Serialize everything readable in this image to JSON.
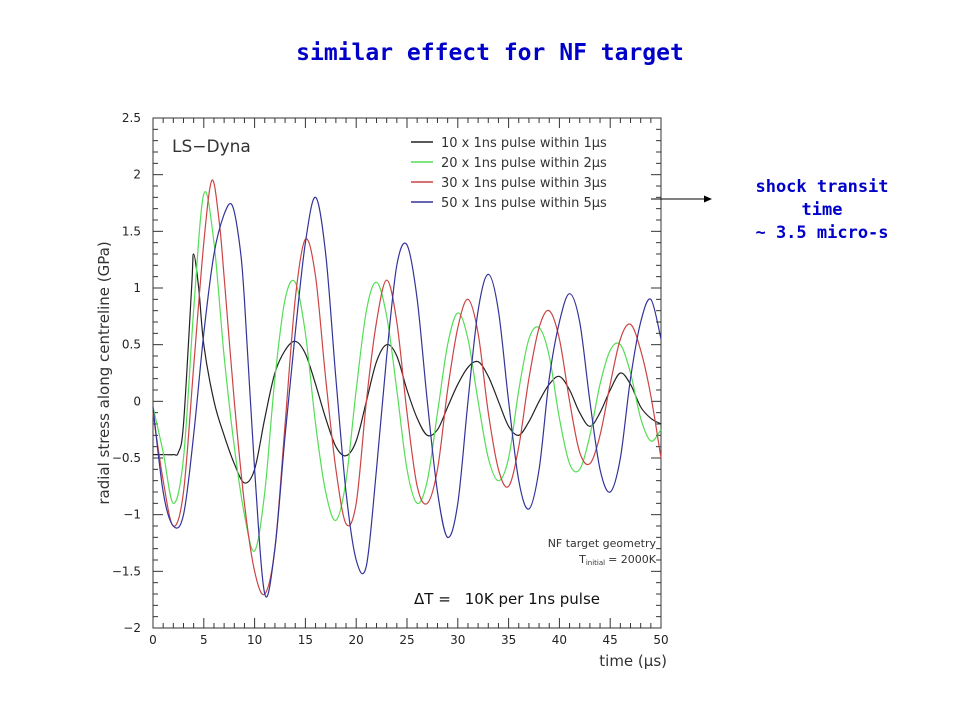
{
  "slide": {
    "title": "similar effect for NF target",
    "note_lines": [
      "shock transit",
      "time",
      "~ 3.5 micro-s"
    ]
  },
  "colors": {
    "title": "#0000c8",
    "s10": "#222222",
    "s20": "#55dd55",
    "s30": "#cc4444",
    "s50": "#333399"
  },
  "chart_data": {
    "type": "line",
    "xlabel": "time (µs)",
    "ylabel": "radial stress along centreline (GPa)",
    "xlim": [
      0,
      50
    ],
    "ylim": [
      -2,
      2.5
    ],
    "x_ticks": [
      0,
      5,
      10,
      15,
      20,
      25,
      30,
      35,
      40,
      45,
      50
    ],
    "x_tick_labels": [
      "0",
      "5",
      "10",
      "15",
      "20",
      "25",
      "30",
      "35",
      "40",
      "45",
      "50"
    ],
    "y_ticks": [
      -2,
      -1.5,
      -1,
      -0.5,
      0,
      0.5,
      1,
      1.5,
      2,
      2.5
    ],
    "y_tick_labels": [
      "−2",
      "−1.5",
      "−1",
      "−0.5",
      "0",
      "0.5",
      "1",
      "1.5",
      "2",
      "2.5"
    ],
    "legend_position": "top-right",
    "annotations": {
      "solver": "LS−Dyna",
      "geometry": "NF target geometry",
      "temp_prefix": "T",
      "temp_sub": "initial",
      "temp_value": "= 2000K",
      "delta_prefix": "ΔT =",
      "delta_value": "10K per 1ns pulse"
    },
    "series": [
      {
        "name": "10 x 1ns pulse within 1µs",
        "color_key": "s10",
        "x": [
          0,
          1,
          2,
          2.5,
          3,
          3.8,
          4,
          4.5,
          5,
          6,
          7,
          8,
          9,
          10,
          11,
          12,
          13,
          14,
          15,
          16,
          17,
          18,
          19,
          20,
          21,
          22,
          23,
          24,
          25,
          26,
          27,
          28,
          29,
          30,
          31,
          32,
          33,
          34,
          35,
          36,
          37,
          38,
          39,
          40,
          41,
          42,
          43,
          44,
          45,
          46,
          47,
          48,
          49,
          50
        ],
        "y": [
          -0.47,
          -0.47,
          -0.47,
          -0.45,
          -0.2,
          1.0,
          1.3,
          1.0,
          0.5,
          0.0,
          -0.3,
          -0.55,
          -0.72,
          -0.6,
          -0.15,
          0.25,
          0.45,
          0.53,
          0.42,
          0.15,
          -0.15,
          -0.4,
          -0.48,
          -0.35,
          0.0,
          0.35,
          0.5,
          0.4,
          0.1,
          -0.15,
          -0.3,
          -0.25,
          -0.05,
          0.15,
          0.3,
          0.35,
          0.22,
          0.0,
          -0.22,
          -0.3,
          -0.18,
          0.0,
          0.15,
          0.22,
          0.1,
          -0.1,
          -0.22,
          -0.1,
          0.1,
          0.25,
          0.15,
          -0.05,
          -0.15,
          -0.2
        ]
      },
      {
        "name": "20 x 1ns pulse within 2µs",
        "color_key": "s20",
        "x": [
          0,
          1,
          2,
          3,
          4,
          5,
          6,
          7,
          8,
          9,
          10,
          11,
          12,
          13,
          14,
          15,
          16,
          17,
          18,
          19,
          20,
          21,
          22,
          23,
          24,
          25,
          26,
          27,
          28,
          29,
          30,
          31,
          32,
          33,
          34,
          35,
          36,
          37,
          38,
          39,
          40,
          41,
          42,
          43,
          44,
          45,
          46,
          47,
          48,
          49,
          50
        ],
        "y": [
          -0.05,
          -0.45,
          -0.9,
          -0.5,
          0.8,
          1.83,
          1.4,
          0.4,
          -0.4,
          -1.0,
          -1.32,
          -0.8,
          0.2,
          0.9,
          1.05,
          0.6,
          -0.2,
          -0.8,
          -1.05,
          -0.7,
          0.1,
          0.8,
          1.05,
          0.75,
          0.1,
          -0.6,
          -0.9,
          -0.7,
          -0.1,
          0.5,
          0.78,
          0.55,
          0.0,
          -0.5,
          -0.7,
          -0.5,
          0.1,
          0.55,
          0.65,
          0.4,
          -0.15,
          -0.55,
          -0.6,
          -0.3,
          0.15,
          0.45,
          0.5,
          0.25,
          -0.15,
          -0.35,
          -0.25
        ]
      },
      {
        "name": "30 x 1ns pulse within 3µs",
        "color_key": "s30",
        "x": [
          0,
          1,
          2,
          3,
          4,
          5,
          5.8,
          6.5,
          7,
          8,
          9,
          10,
          11,
          12,
          13,
          14,
          15,
          16,
          17,
          18,
          19,
          20,
          21,
          22,
          23,
          24,
          25,
          26,
          27,
          28,
          29,
          30,
          31,
          32,
          33,
          34,
          35,
          36,
          37,
          38,
          39,
          40,
          41,
          42,
          43,
          44,
          45,
          46,
          47,
          48,
          49,
          50
        ],
        "y": [
          -0.1,
          -0.7,
          -1.1,
          -0.8,
          0.3,
          1.4,
          1.95,
          1.6,
          1.1,
          0.0,
          -0.9,
          -1.5,
          -1.7,
          -1.3,
          -0.2,
          0.9,
          1.43,
          1.1,
          0.2,
          -0.6,
          -1.08,
          -0.9,
          0.0,
          0.7,
          1.07,
          0.7,
          -0.1,
          -0.75,
          -0.9,
          -0.6,
          0.1,
          0.65,
          0.9,
          0.6,
          -0.1,
          -0.6,
          -0.75,
          -0.4,
          0.2,
          0.65,
          0.8,
          0.55,
          0.0,
          -0.45,
          -0.55,
          -0.3,
          0.15,
          0.55,
          0.68,
          0.45,
          0.05,
          -0.5
        ]
      },
      {
        "name": "50 x 1ns pulse within 5µs",
        "color_key": "s50",
        "x": [
          0,
          1,
          2,
          3,
          4,
          5,
          6,
          7,
          7.8,
          8.5,
          9,
          10,
          11,
          12,
          13,
          14,
          15,
          16,
          17,
          18,
          19,
          20,
          21,
          22,
          23,
          24,
          25,
          26,
          27,
          28,
          29,
          30,
          31,
          32,
          33,
          34,
          35,
          36,
          37,
          38,
          39,
          40,
          41,
          42,
          43,
          44,
          45,
          46,
          47,
          48,
          49,
          50
        ],
        "y": [
          -0.05,
          -0.8,
          -1.1,
          -1.0,
          -0.3,
          0.6,
          1.3,
          1.65,
          1.73,
          1.4,
          0.9,
          -0.6,
          -1.7,
          -1.3,
          -0.3,
          0.6,
          1.4,
          1.8,
          1.3,
          0.2,
          -0.8,
          -1.4,
          -1.45,
          -0.6,
          0.4,
          1.2,
          1.38,
          0.9,
          0.0,
          -0.8,
          -1.2,
          -0.9,
          0.0,
          0.8,
          1.12,
          0.8,
          0.0,
          -0.7,
          -0.95,
          -0.6,
          0.2,
          0.7,
          0.95,
          0.7,
          0.0,
          -0.6,
          -0.8,
          -0.5,
          0.2,
          0.7,
          0.9,
          0.55
        ]
      }
    ]
  }
}
